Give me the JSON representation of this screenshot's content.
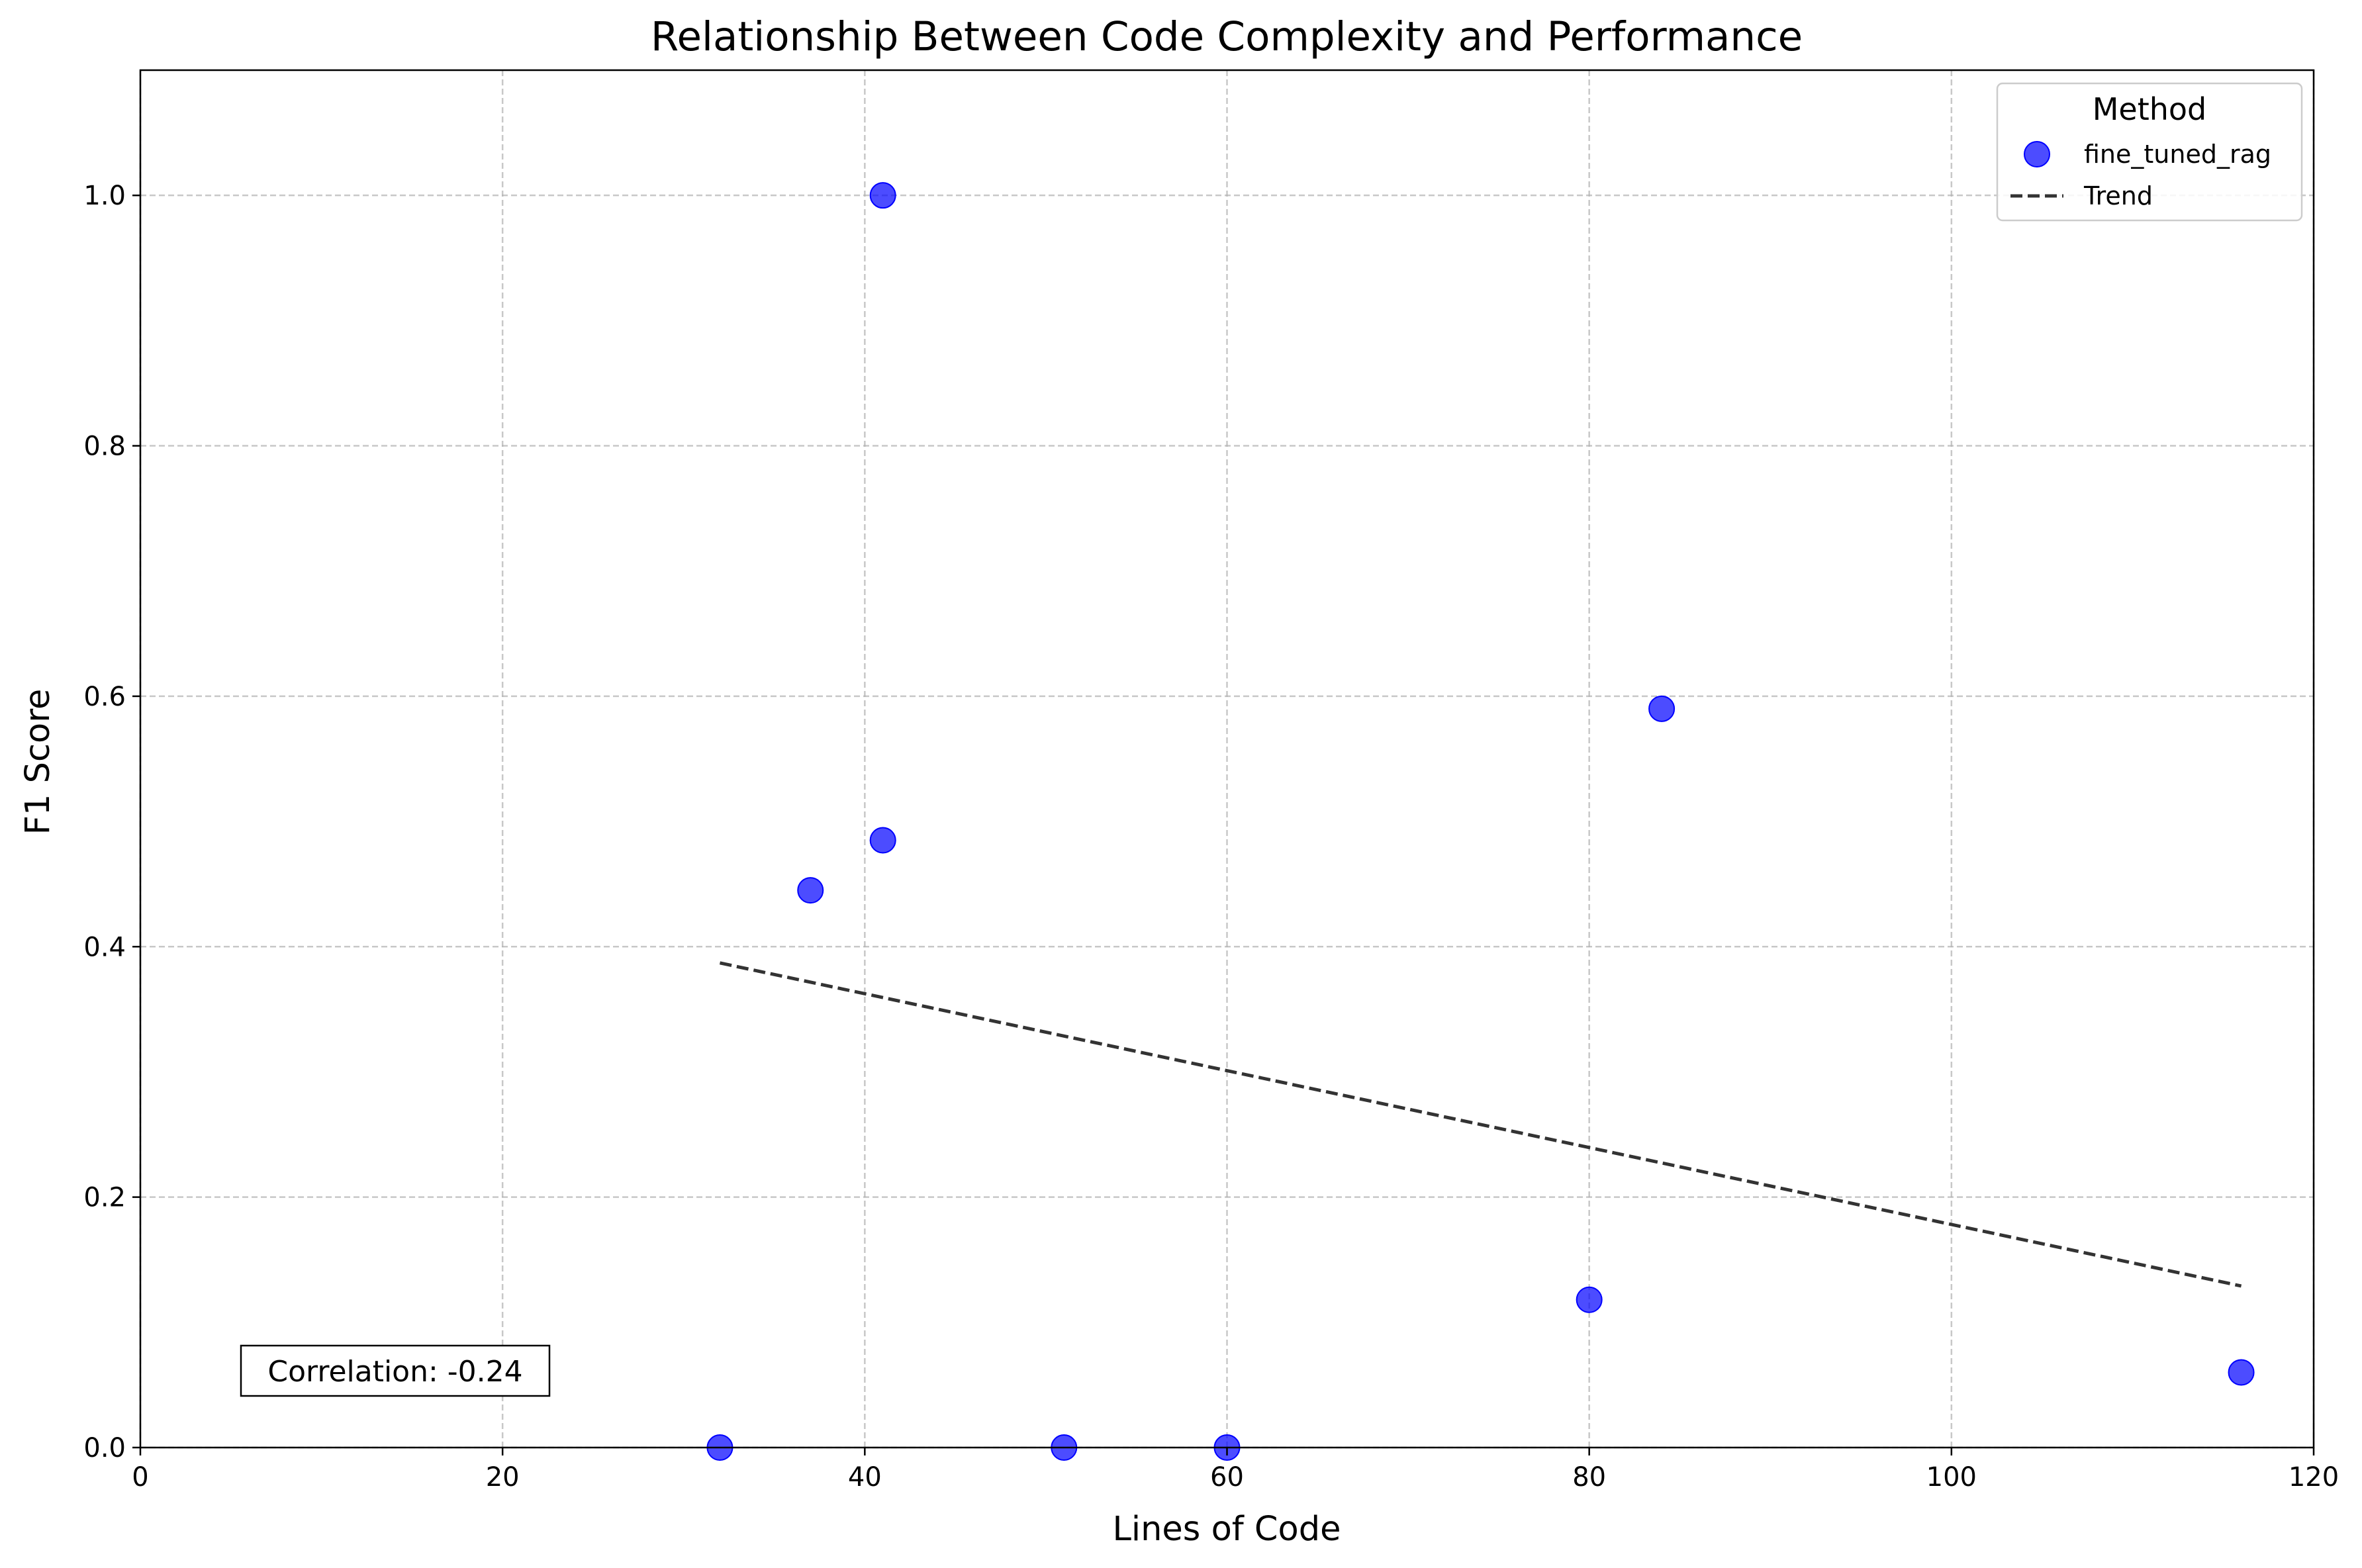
{
  "chart_data": {
    "type": "scatter",
    "title": "Relationship Between Code Complexity and Performance",
    "xlabel": "Lines of Code",
    "ylabel": "F1 Score",
    "xlim": [
      0,
      120
    ],
    "ylim": [
      0,
      1.1
    ],
    "xticks": [
      0,
      20,
      40,
      60,
      80,
      100,
      120
    ],
    "yticks": [
      0.0,
      0.2,
      0.4,
      0.6,
      0.8,
      1.0
    ],
    "xtick_labels": [
      "0",
      "20",
      "40",
      "60",
      "80",
      "100",
      "120"
    ],
    "ytick_labels": [
      "0.0",
      "0.2",
      "0.4",
      "0.6",
      "0.8",
      "1.0"
    ],
    "grid": true,
    "legend": {
      "title": "Method",
      "placement": "top-right",
      "entries": [
        "fine_tuned_rag",
        "Trend"
      ]
    },
    "series": [
      {
        "name": "fine_tuned_rag",
        "color": "#0000ff",
        "x": [
          32,
          37,
          41,
          41,
          51,
          60,
          80,
          84,
          116
        ],
        "y": [
          0.0,
          0.445,
          0.485,
          1.0,
          0.0,
          0.0,
          0.118,
          0.59,
          0.06
        ]
      }
    ],
    "trend": {
      "name": "Trend",
      "color": "#333333",
      "x": [
        32,
        116
      ],
      "y": [
        0.387,
        0.129
      ]
    },
    "annotation": "Correlation: -0.24"
  }
}
